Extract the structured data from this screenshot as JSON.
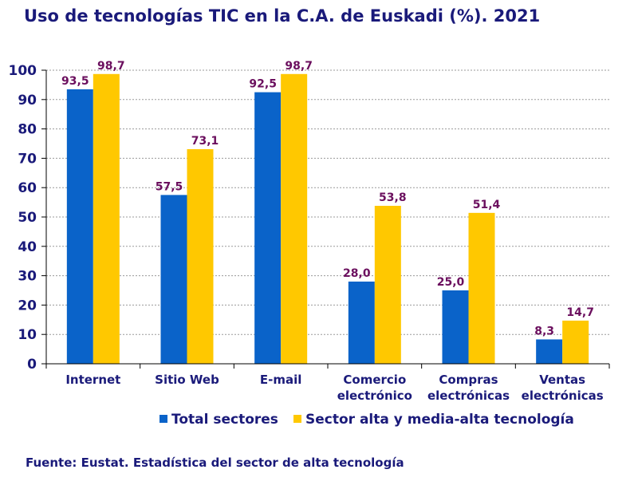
{
  "title": "Uso de tecnologías TIC en la C.A. de Euskadi (%). 2021",
  "source": "Fuente: Eustat. Estadística del sector de alta tecnología",
  "colors": {
    "series0": "#0a63c9",
    "series1": "#ffc800",
    "text": "#1a1a7a",
    "label": "#6b0f5e"
  },
  "chart_data": {
    "type": "bar",
    "title": "Uso de tecnologías TIC en la C.A. de Euskadi (%). 2021",
    "xlabel": "",
    "ylabel": "",
    "ylim": [
      0,
      100
    ],
    "yticks": [
      0,
      10,
      20,
      30,
      40,
      50,
      60,
      70,
      80,
      90,
      100
    ],
    "grid": true,
    "legend_position": "bottom",
    "categories": [
      [
        "Internet"
      ],
      [
        "Sitio Web"
      ],
      [
        "E-mail"
      ],
      [
        "Comercio",
        "electrónico"
      ],
      [
        "Compras",
        "electrónicas"
      ],
      [
        "Ventas",
        "electrónicas"
      ]
    ],
    "series": [
      {
        "name": "Total sectores",
        "values": [
          93.5,
          57.5,
          92.5,
          28.0,
          25.0,
          8.3
        ],
        "labels": [
          "93,5",
          "57,5",
          "92,5",
          "28,0",
          "25,0",
          "8,3"
        ]
      },
      {
        "name": "Sector alta y media-alta tecnología",
        "values": [
          98.7,
          73.1,
          98.7,
          53.8,
          51.4,
          14.7
        ],
        "labels": [
          "98,7",
          "73,1",
          "98,7",
          "53,8",
          "51,4",
          "14,7"
        ]
      }
    ]
  }
}
